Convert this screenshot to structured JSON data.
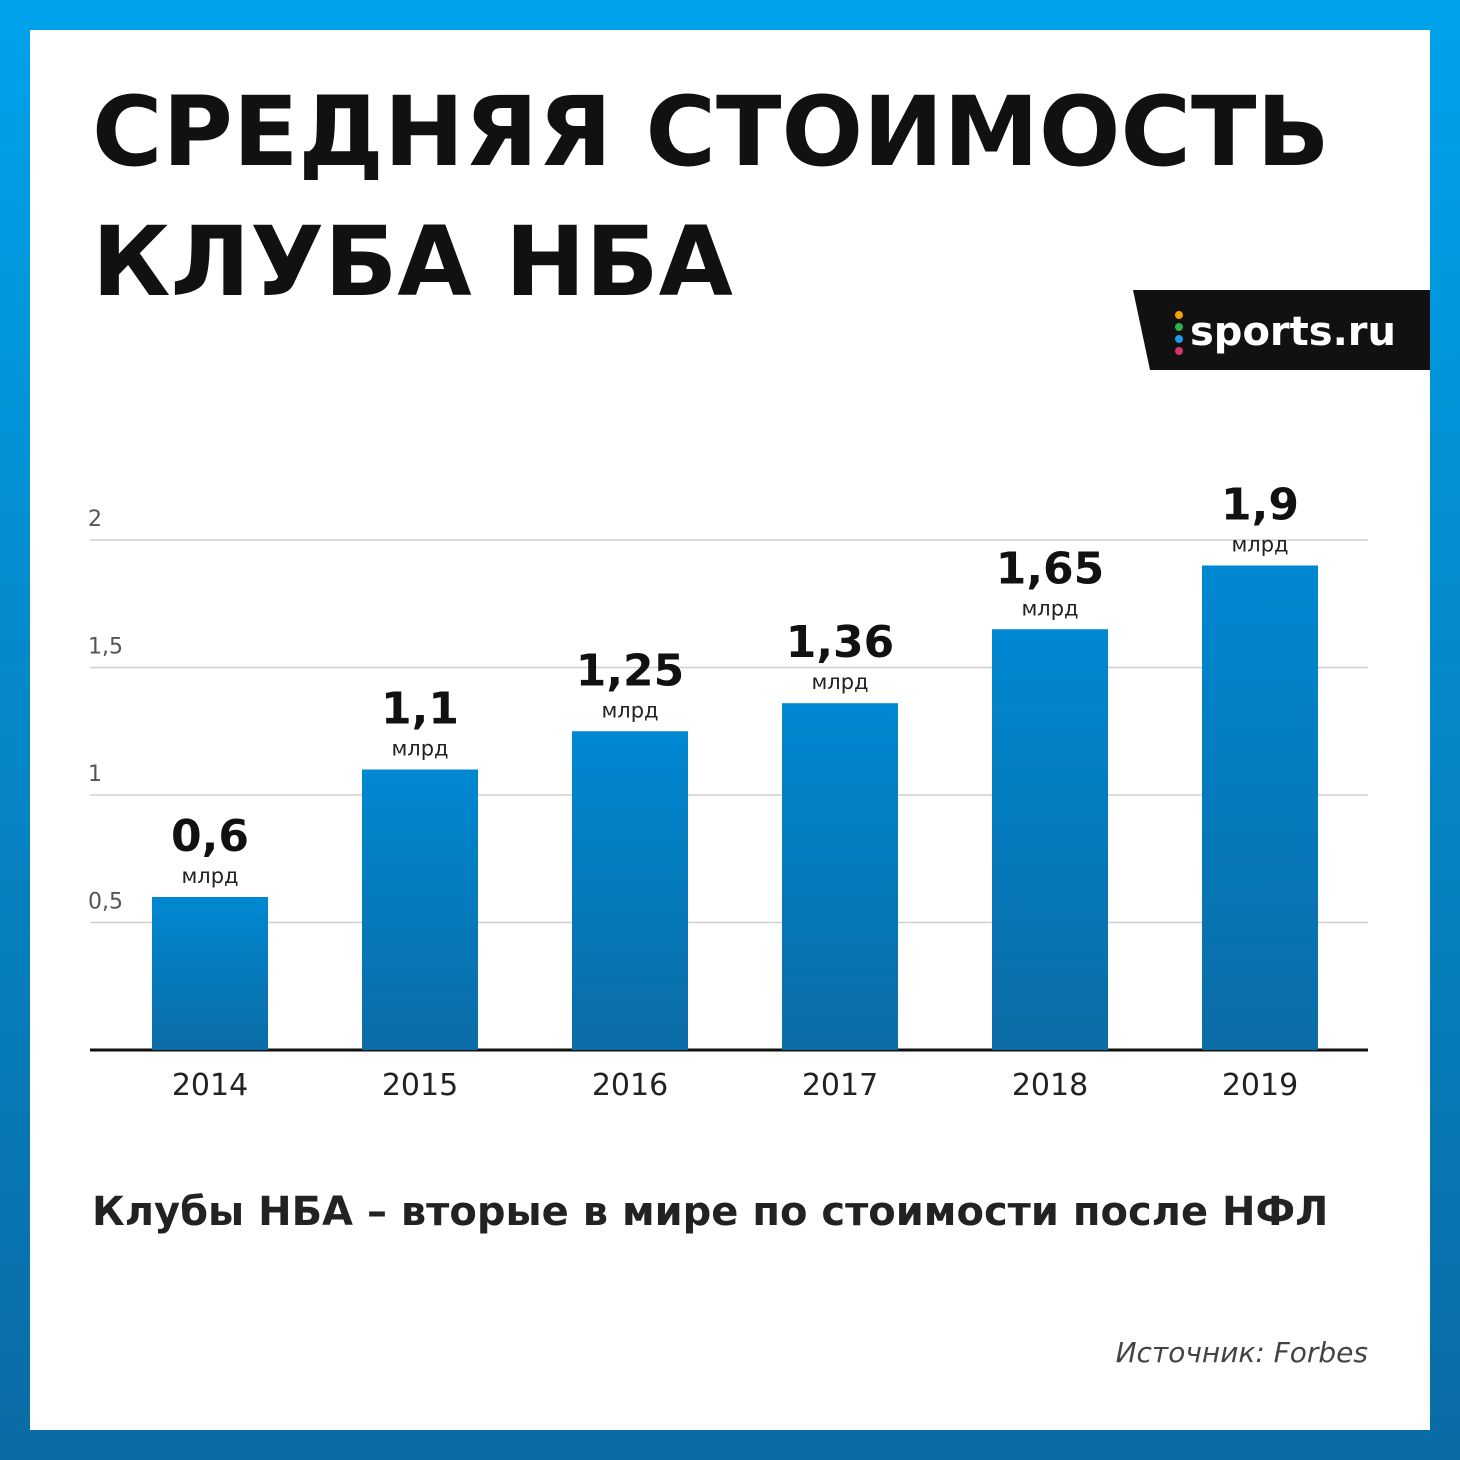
{
  "chart_data": {
    "type": "bar",
    "title": [
      "СРЕДНЯЯ СТОИМОСТЬ",
      "КЛУБА НБА"
    ],
    "logo": "sports.ru",
    "subtitle": "Клубы НБА – вторые в мире по стоимости после НФЛ",
    "source": "Источник: Forbes",
    "unit_label": "млрд",
    "categories": [
      "2014",
      "2015",
      "2016",
      "2017",
      "2018",
      "2019"
    ],
    "values": [
      0.6,
      1.1,
      1.25,
      1.36,
      1.65,
      1.9
    ],
    "value_labels": [
      "0,6",
      "1,1",
      "1,25",
      "1,36",
      "1,65",
      "1,9"
    ],
    "color": "#0085cc",
    "ylim": [
      0,
      2
    ],
    "yticks": [
      {
        "value": 0.5,
        "label": "0,5"
      },
      1,
      {
        "value": 1.5,
        "label": "1,5"
      },
      2
    ],
    "grid": true
  }
}
